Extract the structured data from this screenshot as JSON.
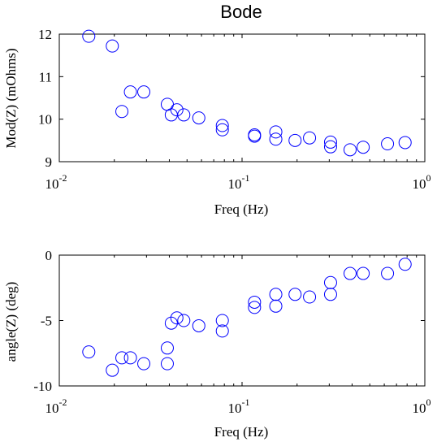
{
  "chart_data": [
    {
      "type": "scatter",
      "title": "Bode",
      "xlabel": "Freq (Hz)",
      "ylabel": "Mod(Z) (mOhms)",
      "xscale": "log",
      "xlim": [
        0.01,
        1
      ],
      "ylim": [
        9,
        12
      ],
      "xticks": [
        {
          "base": "10",
          "exp": "-2",
          "value": 0.01
        },
        {
          "base": "10",
          "exp": "-1",
          "value": 0.1
        },
        {
          "base": "10",
          "exp": "0",
          "value": 1
        }
      ],
      "yticks": [
        {
          "label": "9",
          "value": 9
        },
        {
          "label": "10",
          "value": 10
        },
        {
          "label": "11",
          "value": 11
        },
        {
          "label": "12",
          "value": 12
        }
      ],
      "marker": "circle",
      "color": "#0000ff",
      "points": [
        {
          "x": 0.0145,
          "y": 11.95
        },
        {
          "x": 0.0195,
          "y": 11.72
        },
        {
          "x": 0.022,
          "y": 10.18
        },
        {
          "x": 0.0245,
          "y": 10.64
        },
        {
          "x": 0.029,
          "y": 10.64
        },
        {
          "x": 0.039,
          "y": 10.35
        },
        {
          "x": 0.041,
          "y": 10.1
        },
        {
          "x": 0.044,
          "y": 10.22
        },
        {
          "x": 0.048,
          "y": 10.1
        },
        {
          "x": 0.058,
          "y": 10.03
        },
        {
          "x": 0.078,
          "y": 9.85
        },
        {
          "x": 0.078,
          "y": 9.75
        },
        {
          "x": 0.117,
          "y": 9.63
        },
        {
          "x": 0.117,
          "y": 9.6
        },
        {
          "x": 0.153,
          "y": 9.7
        },
        {
          "x": 0.153,
          "y": 9.53
        },
        {
          "x": 0.195,
          "y": 9.5
        },
        {
          "x": 0.234,
          "y": 9.56
        },
        {
          "x": 0.305,
          "y": 9.46
        },
        {
          "x": 0.305,
          "y": 9.35
        },
        {
          "x": 0.39,
          "y": 9.28
        },
        {
          "x": 0.46,
          "y": 9.34
        },
        {
          "x": 0.625,
          "y": 9.42
        },
        {
          "x": 0.78,
          "y": 9.45
        }
      ]
    },
    {
      "type": "scatter",
      "title": "",
      "xlabel": "Freq (Hz)",
      "ylabel": "angle(Z) (deg)",
      "xscale": "log",
      "xlim": [
        0.01,
        1
      ],
      "ylim": [
        -10,
        0
      ],
      "xticks": [
        {
          "base": "10",
          "exp": "-2",
          "value": 0.01
        },
        {
          "base": "10",
          "exp": "-1",
          "value": 0.1
        },
        {
          "base": "10",
          "exp": "0",
          "value": 1
        }
      ],
      "yticks": [
        {
          "label": "-10",
          "value": -10
        },
        {
          "label": "-5",
          "value": -5
        },
        {
          "label": "0",
          "value": 0
        }
      ],
      "marker": "circle",
      "color": "#0000ff",
      "points": [
        {
          "x": 0.0145,
          "y": -7.4
        },
        {
          "x": 0.0195,
          "y": -8.8
        },
        {
          "x": 0.022,
          "y": -7.85
        },
        {
          "x": 0.0245,
          "y": -7.85
        },
        {
          "x": 0.029,
          "y": -8.3
        },
        {
          "x": 0.039,
          "y": -7.1
        },
        {
          "x": 0.039,
          "y": -8.3
        },
        {
          "x": 0.041,
          "y": -5.2
        },
        {
          "x": 0.044,
          "y": -4.8
        },
        {
          "x": 0.048,
          "y": -5.0
        },
        {
          "x": 0.058,
          "y": -5.4
        },
        {
          "x": 0.078,
          "y": -5.0
        },
        {
          "x": 0.078,
          "y": -5.8
        },
        {
          "x": 0.117,
          "y": -3.6
        },
        {
          "x": 0.117,
          "y": -4.0
        },
        {
          "x": 0.153,
          "y": -3.0
        },
        {
          "x": 0.153,
          "y": -3.9
        },
        {
          "x": 0.195,
          "y": -3.0
        },
        {
          "x": 0.234,
          "y": -3.2
        },
        {
          "x": 0.305,
          "y": -2.1
        },
        {
          "x": 0.305,
          "y": -3.0
        },
        {
          "x": 0.39,
          "y": -1.4
        },
        {
          "x": 0.46,
          "y": -1.4
        },
        {
          "x": 0.625,
          "y": -1.4
        },
        {
          "x": 0.78,
          "y": -0.7
        }
      ]
    }
  ]
}
